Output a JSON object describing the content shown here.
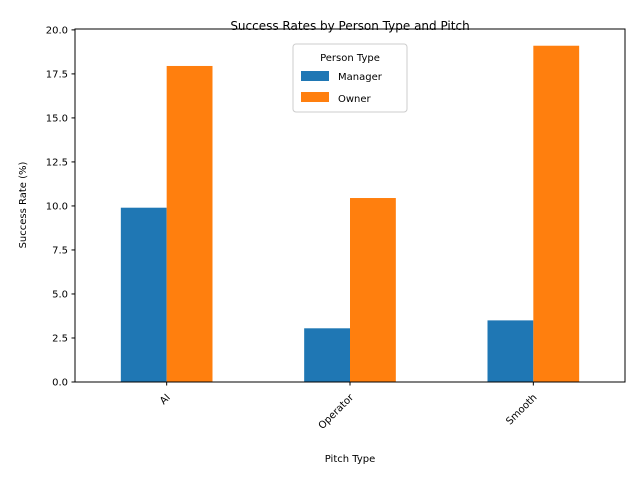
{
  "chart_data": {
    "type": "bar",
    "title": "Success Rates by Person Type and Pitch",
    "xlabel": "Pitch Type",
    "ylabel": "Success Rate (%)",
    "categories": [
      "AI",
      "Operator",
      "Smooth"
    ],
    "series": [
      {
        "name": "Manager",
        "values": [
          9.9,
          3.05,
          3.5
        ],
        "color": "#1f77b4"
      },
      {
        "name": "Owner",
        "values": [
          17.95,
          10.45,
          19.1
        ],
        "color": "#ff7f0e"
      }
    ],
    "ylim": [
      0,
      20.05
    ],
    "yticks": [
      "0.0",
      "2.5",
      "5.0",
      "7.5",
      "10.0",
      "12.5",
      "15.0",
      "17.5",
      "20.0"
    ],
    "grid": false,
    "legend": {
      "title": "Person Type",
      "placement": "top-center"
    },
    "xtick_rotation": 45
  }
}
